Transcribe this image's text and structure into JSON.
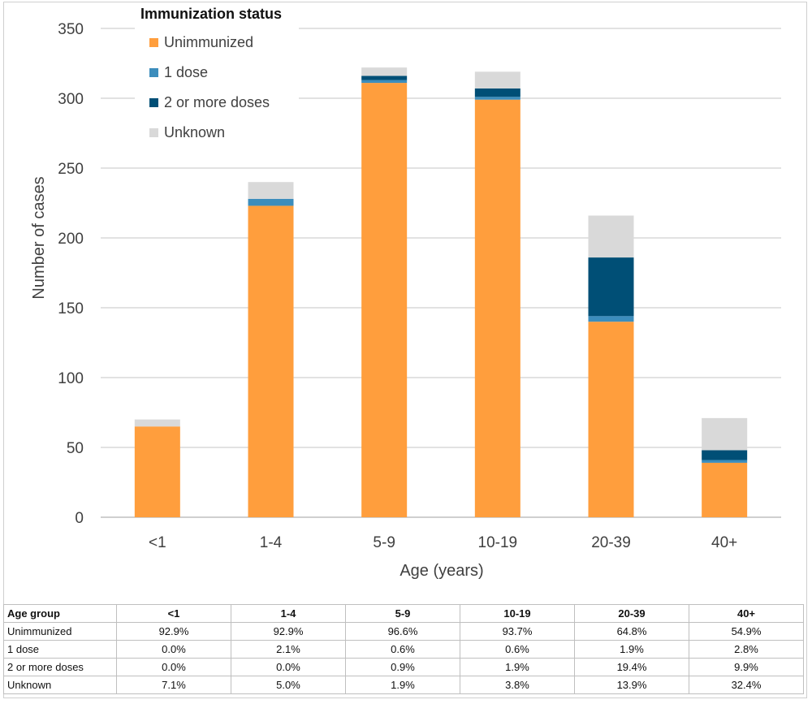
{
  "chart_data": {
    "type": "bar",
    "stacked": true,
    "categories": [
      "<1",
      "1-4",
      "5-9",
      "10-19",
      "20-39",
      "40+"
    ],
    "series": [
      {
        "name": "Unimmunized",
        "color": "#ff9e3d",
        "values": [
          65,
          223,
          311,
          299,
          140,
          39
        ]
      },
      {
        "name": "1 dose",
        "color": "#3c8dbc",
        "values": [
          0,
          5,
          2,
          2,
          4,
          2
        ]
      },
      {
        "name": "2 or more doses",
        "color": "#004f76",
        "values": [
          0,
          0,
          3,
          6,
          42,
          7
        ]
      },
      {
        "name": "Unknown",
        "color": "#d9d9d9",
        "values": [
          5,
          12,
          6,
          12,
          30,
          23
        ]
      }
    ],
    "xlabel": "Age (years)",
    "ylabel": "Number of cases",
    "ylim": [
      0,
      350
    ],
    "yticks": [
      0,
      50,
      100,
      150,
      200,
      250,
      300,
      350
    ],
    "grid": true,
    "legend": {
      "title": "Immunization status",
      "position": "top-left"
    }
  },
  "table": {
    "header": [
      "Age group",
      "<1",
      "1-4",
      "5-9",
      "10-19",
      "20-39",
      "40+"
    ],
    "rows": [
      [
        "Unimmunized",
        "92.9%",
        "92.9%",
        "96.6%",
        "93.7%",
        "64.8%",
        "54.9%"
      ],
      [
        "1 dose",
        "0.0%",
        "2.1%",
        "0.6%",
        "0.6%",
        "1.9%",
        "2.8%"
      ],
      [
        "2 or more doses",
        "0.0%",
        "0.0%",
        "0.9%",
        "1.9%",
        "19.4%",
        "9.9%"
      ],
      [
        "Unknown",
        "7.1%",
        "5.0%",
        "1.9%",
        "3.8%",
        "13.9%",
        "32.4%"
      ]
    ]
  }
}
